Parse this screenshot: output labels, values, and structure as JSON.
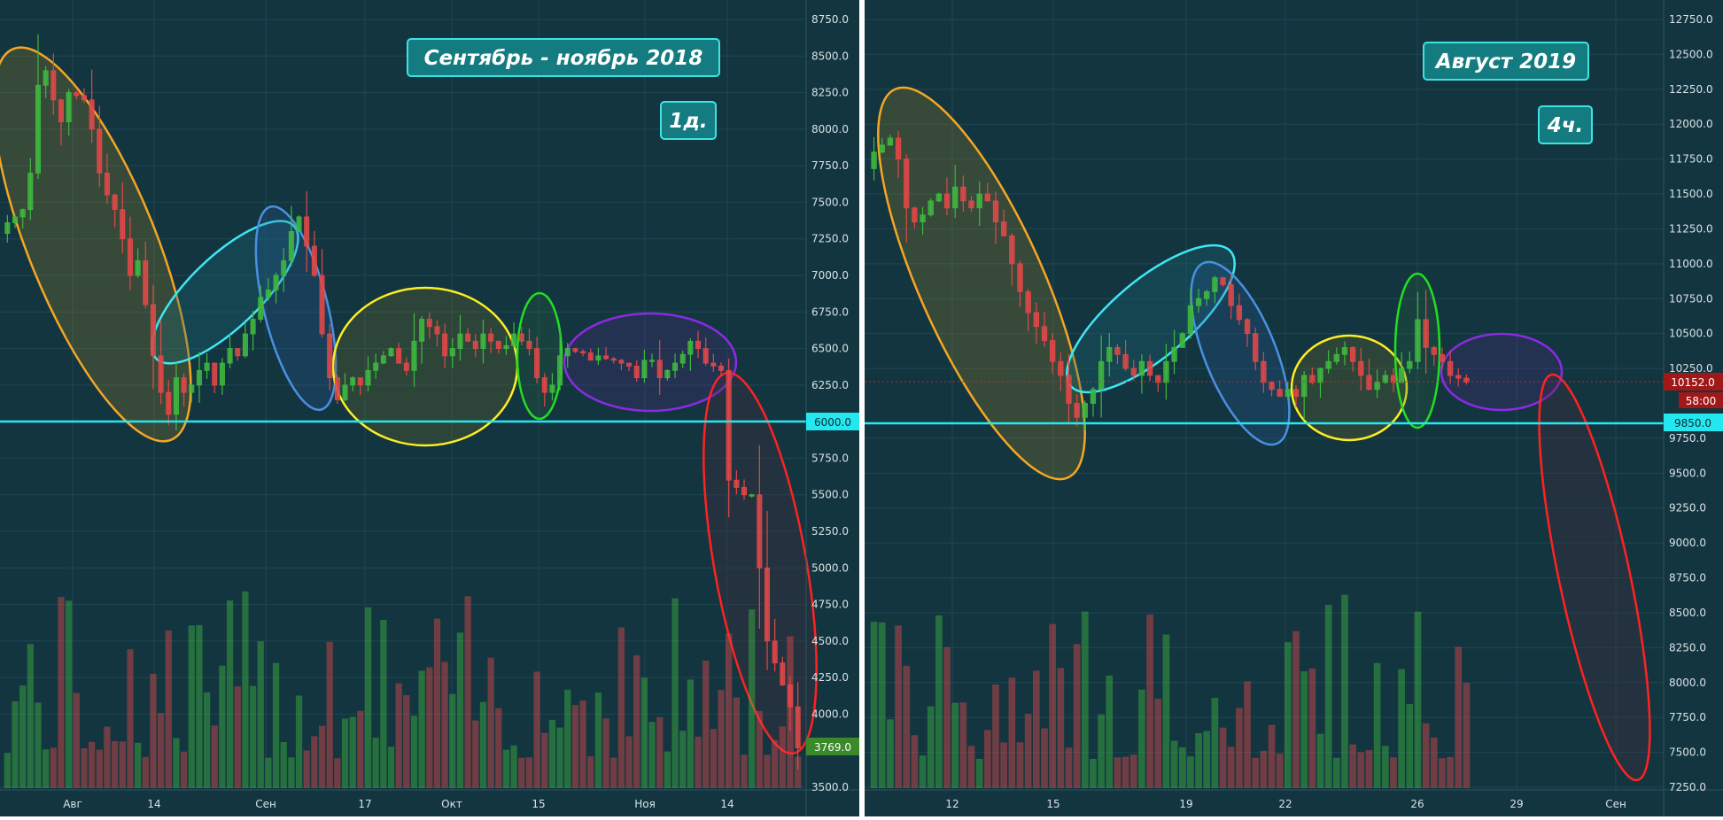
{
  "colors": {
    "background": "#133540",
    "grid": "#1f4752",
    "divider": "#ffffff",
    "up": "#3fb83f",
    "down": "#e04848",
    "axis_text": "#d7e2e6",
    "support_line": "#25e7f0",
    "badge_bg": "#147c80",
    "badge_border": "#3de3e3"
  },
  "chart_data": [
    {
      "type": "candlestick",
      "title": "Сентябрь - ноябрь 2018",
      "timeframe": "1д.",
      "ylim": [
        3500,
        8900
      ],
      "y_ticks": [
        "8750.0",
        "8500.0",
        "8250.0",
        "8000.0",
        "7750.0",
        "7500.0",
        "7250.0",
        "7000.0",
        "6750.0",
        "6500.0",
        "6250.0",
        "6000.0",
        "5750.0",
        "5500.0",
        "5250.0",
        "5000.0",
        "4750.0",
        "4500.0",
        "4250.0",
        "4000.0",
        "3769.0",
        "3500.0"
      ],
      "x_ticks": [
        "Авг",
        "14",
        "Сен",
        "17",
        "Окт",
        "15",
        "Ноя",
        "14"
      ],
      "support_level": "6000.0",
      "last_price": "3769.0",
      "candles_close": [
        7360,
        7400,
        7450,
        7700,
        8300,
        8400,
        8200,
        8050,
        8250,
        8230,
        8200,
        8000,
        7700,
        7550,
        7450,
        7250,
        7000,
        7100,
        6800,
        6450,
        6200,
        6050,
        6300,
        6200,
        6250,
        6350,
        6400,
        6250,
        6400,
        6500,
        6450,
        6600,
        6700,
        6850,
        6900,
        7000,
        7100,
        7300,
        7400,
        7200,
        7000,
        6600,
        6300,
        6150,
        6250,
        6300,
        6250,
        6350,
        6400,
        6450,
        6500,
        6400,
        6350,
        6550,
        6700,
        6650,
        6600,
        6450,
        6500,
        6600,
        6550,
        6500,
        6600,
        6550,
        6500,
        6520,
        6600,
        6550,
        6500,
        6300,
        6200,
        6250,
        6450,
        6500,
        6480,
        6470,
        6420,
        6450,
        6430,
        6420,
        6400,
        6380,
        6300,
        6420,
        6420,
        6300,
        6350,
        6400,
        6460,
        6550,
        6500,
        6400,
        6380,
        6350,
        5600,
        5550,
        5500,
        5500,
        5000,
        4500,
        4350,
        4200,
        4050,
        3769
      ],
      "volume_profile": "random"
    },
    {
      "type": "candlestick",
      "title": "Август 2019",
      "timeframe": "4ч.",
      "ylim": [
        7250,
        12800
      ],
      "y_ticks": [
        "12750.0",
        "12500.0",
        "12250.0",
        "12000.0",
        "11750.0",
        "11500.0",
        "11250.0",
        "11000.0",
        "10750.0",
        "10500.0",
        "10250.0",
        "10152.0",
        "9850.0",
        "9750.0",
        "9500.0",
        "9250.0",
        "9000.0",
        "8750.0",
        "8500.0",
        "8250.0",
        "8000.0",
        "7750.0",
        "7500.0",
        "7250.0"
      ],
      "x_ticks": [
        "12",
        "15",
        "19",
        "22",
        "26",
        "29",
        "Сен"
      ],
      "support_level": "9850.0",
      "last_price": "10152.0",
      "countdown": "58:00",
      "candles_close": [
        11800,
        11850,
        11900,
        11750,
        11400,
        11300,
        11350,
        11450,
        11500,
        11400,
        11550,
        11450,
        11400,
        11500,
        11450,
        11300,
        11200,
        11000,
        10800,
        10650,
        10550,
        10450,
        10300,
        10200,
        10000,
        9900,
        10000,
        10100,
        10300,
        10400,
        10350,
        10250,
        10200,
        10300,
        10200,
        10150,
        10300,
        10400,
        10500,
        10700,
        10750,
        10800,
        10900,
        10850,
        10700,
        10600,
        10500,
        10300,
        10150,
        10100,
        10050,
        10100,
        10050,
        10200,
        10150,
        10250,
        10300,
        10350,
        10400,
        10300,
        10200,
        10100,
        10150,
        10200,
        10150,
        10250,
        10300,
        10600,
        10400,
        10350,
        10300,
        10200,
        10180,
        10152
      ]
    }
  ]
}
